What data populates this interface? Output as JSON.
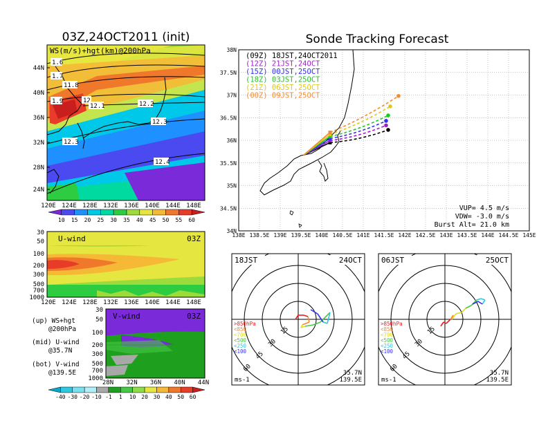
{
  "main_title": "Sonde Tracking Forecast",
  "left_title": "03Z,24OCT2011 (init)",
  "map_panel": {
    "header": "WS(m/s)+hgt(km)@200hPa",
    "lat_labels": [
      "44N",
      "40N",
      "36N",
      "32N",
      "28N",
      "24N"
    ],
    "lon_labels": [
      "120E",
      "124E",
      "128E",
      "132E",
      "136E",
      "140E",
      "144E",
      "148E"
    ],
    "contour_labels": [
      "1.6",
      "1.7",
      "11.8",
      "1.9",
      "12",
      "12.1",
      "12.2",
      "12.3",
      "12.3",
      "12.4"
    ],
    "colorbar": [
      "10",
      "15",
      "20",
      "25",
      "30",
      "35",
      "40",
      "45",
      "50",
      "55",
      "60"
    ],
    "colorbar_colors": [
      "#7a2ad8",
      "#4a4af0",
      "#1e90ff",
      "#00c8e8",
      "#00d9a0",
      "#2ecc40",
      "#9bdc3c",
      "#e6e640",
      "#f5b936",
      "#f0782a",
      "#e83c28",
      "#c81e1e"
    ]
  },
  "u_panel": {
    "title": "U-wind",
    "time": "03Z",
    "p_labels": [
      "30",
      "50",
      "100",
      "200",
      "300",
      "500",
      "700",
      "1000"
    ],
    "lon_labels": [
      "120E",
      "124E",
      "128E",
      "132E",
      "136E",
      "140E",
      "144E",
      "148E"
    ]
  },
  "v_panel": {
    "title": "V-wind",
    "time": "03Z",
    "p_labels": [
      "30",
      "50",
      "100",
      "200",
      "300",
      "500",
      "700",
      "1000"
    ],
    "lat_labels": [
      "28N",
      "32N",
      "36N",
      "40N",
      "44N"
    ]
  },
  "legend_notes": [
    {
      "a": "(up) WS+hgt",
      "b": "@200hPa"
    },
    {
      "a": "(mid) U-wind",
      "b": "@35.7N"
    },
    {
      "a": "(bot) V-wind",
      "b": "@139.5E"
    }
  ],
  "bottom_colorbar": [
    "-40",
    "-30",
    "-20",
    "-10",
    "-1",
    "1",
    "10",
    "20",
    "30",
    "40",
    "50",
    "60"
  ],
  "bottom_colorbar_colors": [
    "#0aa8c8",
    "#2ec8e0",
    "#7ae0f0",
    "#b0eef8",
    "#a8a8a8",
    "#1ea01e",
    "#46c846",
    "#8edc46",
    "#e6e640",
    "#f5b936",
    "#f0782a",
    "#e83c28",
    "#c81e1e"
  ],
  "track_panel": {
    "lat_labels": [
      "38N",
      "37.5N",
      "37N",
      "36.5N",
      "36N",
      "35.5N",
      "35N",
      "34.5N",
      "34N"
    ],
    "lon_labels": [
      "138E",
      "138.5E",
      "139E",
      "139.5E",
      "140E",
      "140.5E",
      "141E",
      "141.5E",
      "142E",
      "142.5E",
      "143E",
      "143.5E",
      "144E",
      "144.5E",
      "145E"
    ],
    "launches": [
      {
        "label": "(09Z) 18JST,24OCT2011",
        "color": "#000000"
      },
      {
        "label": "(12Z) 21JST,24OCT",
        "color": "#a020c8"
      },
      {
        "label": "(15Z) 00JST,25OCT",
        "color": "#3232f0"
      },
      {
        "label": "(18Z) 03JST,25OCT",
        "color": "#1ec81e"
      },
      {
        "label": "(21Z) 06JST,25OCT",
        "color": "#dcc81e"
      },
      {
        "label": "(00Z) 09JST,25OCT",
        "color": "#f08c32"
      }
    ],
    "params": [
      "VUP= 4.5 m/s",
      "VDW= -3.0 m/s",
      "Burst Alt= 21.0 km"
    ]
  },
  "chart_data": [
    {
      "type": "line",
      "title": "Sonde Tracking Forecast",
      "xlim": [
        138,
        145
      ],
      "ylim": [
        34,
        38
      ],
      "series": [
        {
          "name": "(09Z) 18JST,24OCT2011",
          "end": [
            141.6,
            36.23
          ]
        },
        {
          "name": "(12Z) 21JST,24OCT",
          "end": [
            141.55,
            36.33
          ]
        },
        {
          "name": "(15Z) 00JST,25OCT",
          "end": [
            141.55,
            36.43
          ]
        },
        {
          "name": "(18Z) 03JST,25OCT",
          "end": [
            141.6,
            36.55
          ]
        },
        {
          "name": "(21Z) 06JST,25OCT",
          "end": [
            141.65,
            36.75
          ]
        },
        {
          "name": "(00Z) 09JST,25OCT",
          "end": [
            141.85,
            36.98
          ]
        }
      ]
    },
    {
      "type": "line",
      "title": "18JST 24OCT",
      "polar": true,
      "rings": [
        "15",
        "30",
        "45",
        "60"
      ],
      "unit": "ms-1",
      "location": [
        "35.7N",
        "139.5E"
      ],
      "levels": [
        ">850hPa",
        "<850",
        "<700",
        "<500",
        "<250",
        "<100"
      ],
      "level_colors": [
        "#e81e1e",
        "#f08c32",
        "#dcdc1e",
        "#46c846",
        "#2ec8e0",
        "#3232f0"
      ]
    },
    {
      "type": "line",
      "title": "06JST 25OCT",
      "polar": true,
      "rings": [
        "15",
        "30",
        "45",
        "60"
      ],
      "unit": "ms-1",
      "location": [
        "35.7N",
        "139.5E"
      ],
      "levels": [
        ">850hPa",
        "<850",
        "<700",
        "<500",
        "<250",
        "<100"
      ],
      "level_colors": [
        "#e81e1e",
        "#f08c32",
        "#dcdc1e",
        "#46c846",
        "#2ec8e0",
        "#3232f0"
      ]
    }
  ],
  "hodo1": {
    "time": "18JST",
    "date": "24OCT"
  },
  "hodo2": {
    "time": "06JST",
    "date": "25OCT"
  }
}
